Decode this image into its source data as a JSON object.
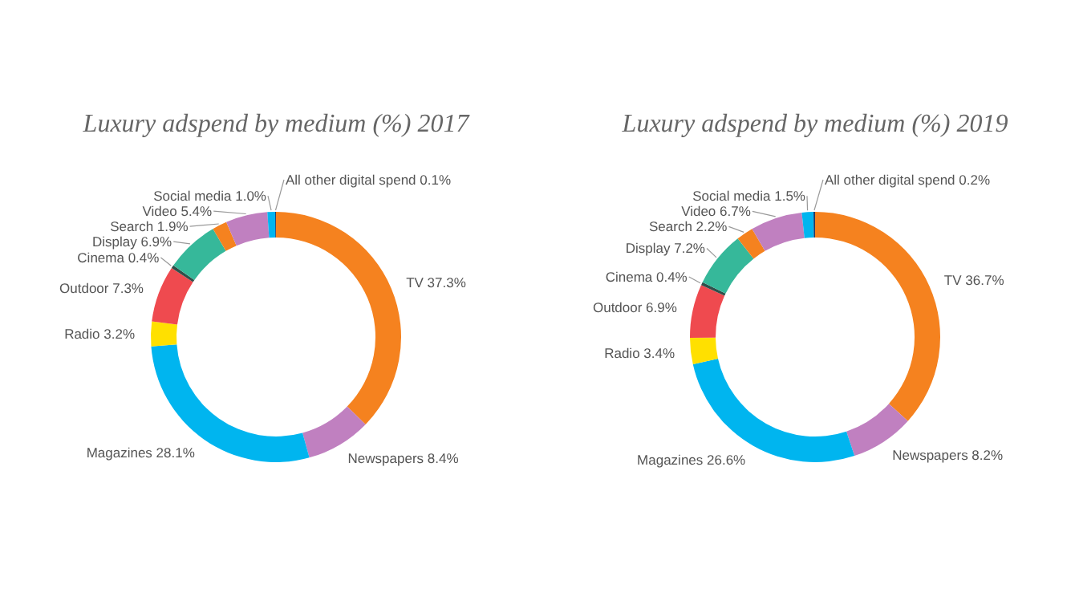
{
  "chart_data": [
    {
      "type": "donut",
      "title": "Luxury adspend by medium (%) 2017",
      "categories": [
        "TV",
        "Newspapers",
        "Magazines",
        "Radio",
        "Outdoor",
        "Cinema",
        "Display",
        "Search",
        "Video",
        "Social media",
        "All other digital spend"
      ],
      "values": [
        37.3,
        8.4,
        28.1,
        3.2,
        7.3,
        0.4,
        6.9,
        1.9,
        5.4,
        1.0,
        0.1
      ],
      "value_labels": [
        "37.3%",
        "8.4%",
        "28.1%",
        "3.2%",
        "7.3%",
        "0.4%",
        "6.9%",
        "1.9%",
        "5.4%",
        "1.0%",
        "0.1%"
      ],
      "colors": [
        "#f5821f",
        "#c080c0",
        "#00b5ef",
        "#ffe000",
        "#ef4a4f",
        "#2f4f4a",
        "#36b89a",
        "#f5821f",
        "#c080c0",
        "#00b5ef",
        "#1a3a6a"
      ]
    },
    {
      "type": "donut",
      "title": "Luxury adspend by medium (%) 2019",
      "categories": [
        "TV",
        "Newspapers",
        "Magazines",
        "Radio",
        "Outdoor",
        "Cinema",
        "Display",
        "Search",
        "Video",
        "Social media",
        "All other digital spend"
      ],
      "values": [
        36.7,
        8.2,
        26.6,
        3.4,
        6.9,
        0.4,
        7.2,
        2.2,
        6.7,
        1.5,
        0.2
      ],
      "value_labels": [
        "36.7%",
        "8.2%",
        "26.6%",
        "3.4%",
        "6.9%",
        "0.4%",
        "7.2%",
        "2.2%",
        "6.7%",
        "1.5%",
        "0.2%"
      ],
      "colors": [
        "#f5821f",
        "#c080c0",
        "#00b5ef",
        "#ffe000",
        "#ef4a4f",
        "#2f4f4a",
        "#36b89a",
        "#f5821f",
        "#c080c0",
        "#00b5ef",
        "#1a3a6a"
      ]
    }
  ]
}
